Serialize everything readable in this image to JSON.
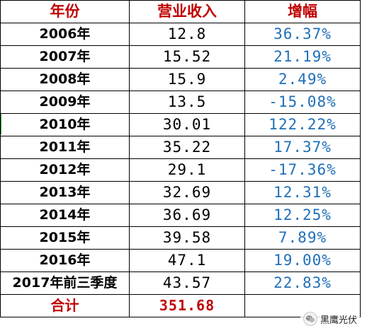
{
  "colors": {
    "header_text": "#c00000",
    "growth_text": "#1f6fb8",
    "border": "#000000"
  },
  "table": {
    "headers": [
      "年份",
      "营业收入",
      "增幅"
    ],
    "rows": [
      {
        "year": "2006年",
        "revenue": "12.8",
        "growth": "36.37%"
      },
      {
        "year": "2007年",
        "revenue": "15.52",
        "growth": "21.19%"
      },
      {
        "year": "2008年",
        "revenue": "15.9",
        "growth": "2.49%"
      },
      {
        "year": "2009年",
        "revenue": "13.5",
        "growth": "-15.08%"
      },
      {
        "year": "2010年",
        "revenue": "30.01",
        "growth": "122.22%"
      },
      {
        "year": "2011年",
        "revenue": "35.22",
        "growth": "17.37%"
      },
      {
        "year": "2012年",
        "revenue": "29.1",
        "growth": "-17.36%"
      },
      {
        "year": "2013年",
        "revenue": "32.69",
        "growth": "12.31%"
      },
      {
        "year": "2014年",
        "revenue": "36.69",
        "growth": "12.25%"
      },
      {
        "year": "2015年",
        "revenue": "39.58",
        "growth": "7.89%"
      },
      {
        "year": "2016年",
        "revenue": "47.1",
        "growth": "19.00%"
      },
      {
        "year": "2017年前三季度",
        "revenue": "43.57",
        "growth": "22.83%"
      }
    ],
    "total": {
      "label": "合计",
      "revenue": "351.68",
      "growth": ""
    }
  },
  "watermark": {
    "icon": "wechat-icon",
    "text": "黑鹰光伏"
  }
}
